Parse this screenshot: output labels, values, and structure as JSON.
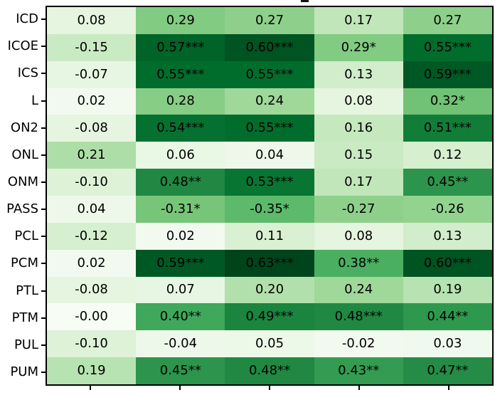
{
  "figure": {
    "background_color": "#ffffff",
    "spine_color": "#000000",
    "text_color": "#000000",
    "title_fragment": "_ (bottom sliver of a cropped-off title underscore)"
  },
  "chart_data": {
    "type": "heatmap",
    "title": "",
    "xlabel": "",
    "ylabel": "",
    "rows": [
      "ICD",
      "ICOE",
      "ICS",
      "L",
      "ON2",
      "ONL",
      "ONM",
      "PASS",
      "PCL",
      "PCM",
      "PTL",
      "PTM",
      "PUL",
      "PUM"
    ],
    "x_axis": {
      "tick_count": 5,
      "tick_labels_visible": false
    },
    "cell_labels": [
      [
        "0.08",
        "0.29",
        "0.27",
        "0.17",
        "0.27"
      ],
      [
        "-0.15",
        "0.57***",
        "0.60***",
        "0.29*",
        "0.55***"
      ],
      [
        "-0.07",
        "0.55***",
        "0.55***",
        "0.13",
        "0.59***"
      ],
      [
        "0.02",
        "0.28",
        "0.24",
        "0.08",
        "0.32*"
      ],
      [
        "-0.08",
        "0.54***",
        "0.55***",
        "0.16",
        "0.51***"
      ],
      [
        "0.21",
        "0.06",
        "0.04",
        "0.15",
        "0.12"
      ],
      [
        "-0.10",
        "0.48**",
        "0.53***",
        "0.17",
        "0.45**"
      ],
      [
        "0.04",
        "-0.31*",
        "-0.35*",
        "-0.27",
        "-0.26"
      ],
      [
        "-0.12",
        "0.02",
        "0.11",
        "0.08",
        "0.13"
      ],
      [
        "0.02",
        "0.59***",
        "0.63***",
        "0.38**",
        "0.60***"
      ],
      [
        "-0.08",
        "0.07",
        "0.20",
        "0.24",
        "0.19"
      ],
      [
        "-0.00",
        "0.40**",
        "0.49***",
        "0.48***",
        "0.44**"
      ],
      [
        "-0.10",
        "-0.04",
        "0.05",
        "-0.02",
        "0.03"
      ],
      [
        "0.19",
        "0.45**",
        "0.48**",
        "0.43**",
        "0.47**"
      ]
    ],
    "values": [
      [
        0.08,
        0.29,
        0.27,
        0.17,
        0.27
      ],
      [
        -0.15,
        0.57,
        0.6,
        0.29,
        0.55
      ],
      [
        -0.07,
        0.55,
        0.55,
        0.13,
        0.59
      ],
      [
        0.02,
        0.28,
        0.24,
        0.08,
        0.32
      ],
      [
        -0.08,
        0.54,
        0.55,
        0.16,
        0.51
      ],
      [
        0.21,
        0.06,
        0.04,
        0.15,
        0.12
      ],
      [
        -0.1,
        0.48,
        0.53,
        0.17,
        0.45
      ],
      [
        0.04,
        -0.31,
        -0.35,
        -0.27,
        -0.26
      ],
      [
        -0.12,
        0.02,
        0.11,
        0.08,
        0.13
      ],
      [
        0.02,
        0.59,
        0.63,
        0.38,
        0.6
      ],
      [
        -0.08,
        0.07,
        0.2,
        0.24,
        0.19
      ],
      [
        -0.0,
        0.4,
        0.49,
        0.48,
        0.44
      ],
      [
        -0.1,
        -0.04,
        0.05,
        -0.02,
        0.03
      ],
      [
        0.19,
        0.45,
        0.48,
        0.43,
        0.47
      ]
    ],
    "color_scale": {
      "colormap_name": "Greens",
      "colormap_stops": [
        "#f7fcf5",
        "#e5f5e0",
        "#c7e9c0",
        "#a1d99b",
        "#74c476",
        "#41ab5d",
        "#238b45",
        "#006d2c",
        "#00441b"
      ],
      "mapped_on": "abs(value)",
      "vmin": 0,
      "vmax": 0.63
    },
    "grid": false,
    "legend": "none"
  }
}
